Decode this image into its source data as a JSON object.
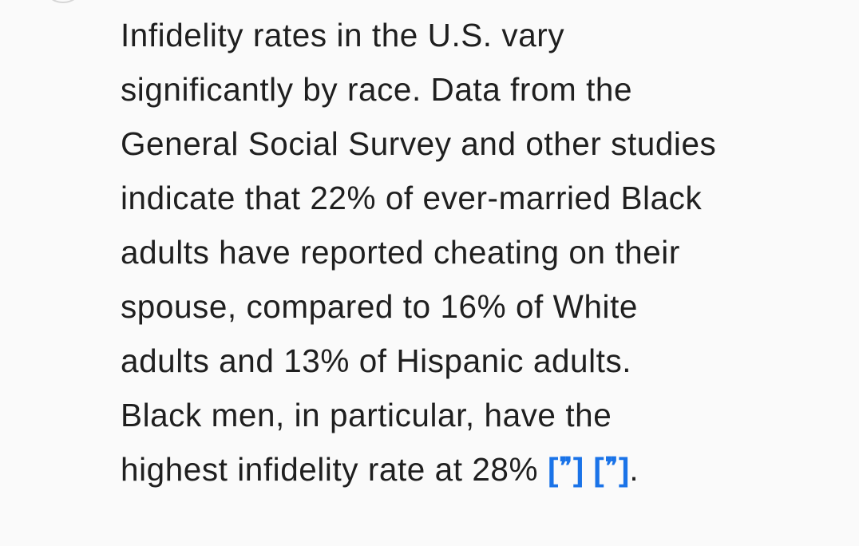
{
  "answer": {
    "lines": [
      "Infidelity rates in the U.S. vary",
      "significantly by race. Data from the",
      "General Social Survey and other studies",
      "indicate that 22% of ever-married Black",
      "adults have reported cheating on their",
      "spouse, compared to 16% of White",
      "adults and 13% of Hispanic adults.",
      "Black men, in particular, have the",
      "highest infidelity rate at 28%"
    ],
    "citations": [
      {
        "open": "[",
        "glyph": "❞",
        "close": "]"
      },
      {
        "open": "[",
        "glyph": "❞",
        "close": "]"
      }
    ],
    "end_punct": "."
  },
  "colors": {
    "background": "#fafafa",
    "text": "#1f1f1f",
    "citation": "#1a73e8"
  },
  "icons": {
    "citation_icon": "quote-icon",
    "top_left": "avatar-ring"
  }
}
